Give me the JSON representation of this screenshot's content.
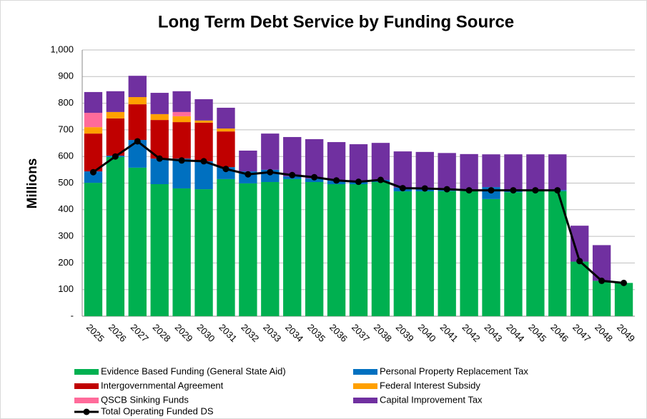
{
  "chart_data": {
    "type": "stacked_bar",
    "title": "Long Term Debt Service by Funding Source",
    "y_label": "Millions",
    "categories": [
      "2025",
      "2026",
      "2027",
      "2028",
      "2029",
      "2030",
      "2031",
      "2032",
      "2033",
      "2034",
      "2035",
      "2036",
      "2037",
      "2038",
      "2039",
      "2040",
      "2041",
      "2042",
      "2043",
      "2044",
      "2045",
      "2046",
      "2047",
      "2048",
      "2049"
    ],
    "ylim": [
      0,
      1000
    ],
    "yticks": [
      {
        "value": 0,
        "label": "-"
      },
      100,
      200,
      300,
      400,
      500,
      600,
      700,
      800,
      900,
      {
        "value": 1000,
        "label": "1,000"
      }
    ],
    "grid": true,
    "series": [
      {
        "name": "Evidence Based Funding (General State Aid)",
        "color": "#00b050",
        "values": [
          501,
          598,
          558,
          496,
          480,
          477,
          515,
          499,
          504,
          515,
          504,
          496,
          496,
          504,
          469,
          469,
          470,
          470,
          440,
          466,
          470,
          470,
          205,
          133,
          125
        ]
      },
      {
        "name": "Personal Property Replacement Tax",
        "color": "#0070c0",
        "values": [
          43,
          5,
          104,
          96,
          112,
          105,
          45,
          45,
          46,
          10,
          13,
          13,
          8,
          8,
          14,
          14,
          8,
          4,
          45,
          8,
          4,
          4,
          0,
          0,
          0
        ]
      },
      {
        "name": "Intergovernmental Agreement",
        "color": "#c00000",
        "values": [
          142,
          140,
          134,
          145,
          137,
          145,
          134,
          0,
          0,
          0,
          0,
          0,
          0,
          0,
          0,
          0,
          0,
          0,
          0,
          0,
          0,
          0,
          0,
          0,
          0
        ]
      },
      {
        "name": "Federal Interest Subsidy",
        "color": "#ffa000",
        "values": [
          24,
          24,
          27,
          22,
          22,
          8,
          11,
          0,
          0,
          0,
          0,
          0,
          0,
          0,
          0,
          0,
          0,
          0,
          0,
          0,
          0,
          0,
          0,
          0,
          0
        ]
      },
      {
        "name": "QSCB Sinking Funds",
        "color": "#ff6b9a",
        "values": [
          54,
          0,
          0,
          0,
          16,
          0,
          0,
          0,
          0,
          0,
          0,
          0,
          0,
          0,
          0,
          0,
          0,
          0,
          0,
          0,
          0,
          0,
          0,
          0,
          0
        ]
      },
      {
        "name": "Capital Improvement Tax",
        "color": "#7030a0",
        "values": [
          78,
          78,
          80,
          80,
          78,
          80,
          78,
          78,
          136,
          148,
          148,
          145,
          142,
          139,
          136,
          134,
          135,
          135,
          123,
          134,
          134,
          134,
          135,
          134,
          0
        ]
      },
      {
        "name": "Total Operating Funded DS",
        "color": "#000000",
        "type": "line",
        "values": [
          541,
          600,
          657,
          592,
          585,
          582,
          553,
          533,
          541,
          530,
          522,
          510,
          505,
          512,
          481,
          480,
          477,
          473,
          473,
          473,
          473,
          473,
          207,
          133,
          125
        ]
      }
    ]
  }
}
